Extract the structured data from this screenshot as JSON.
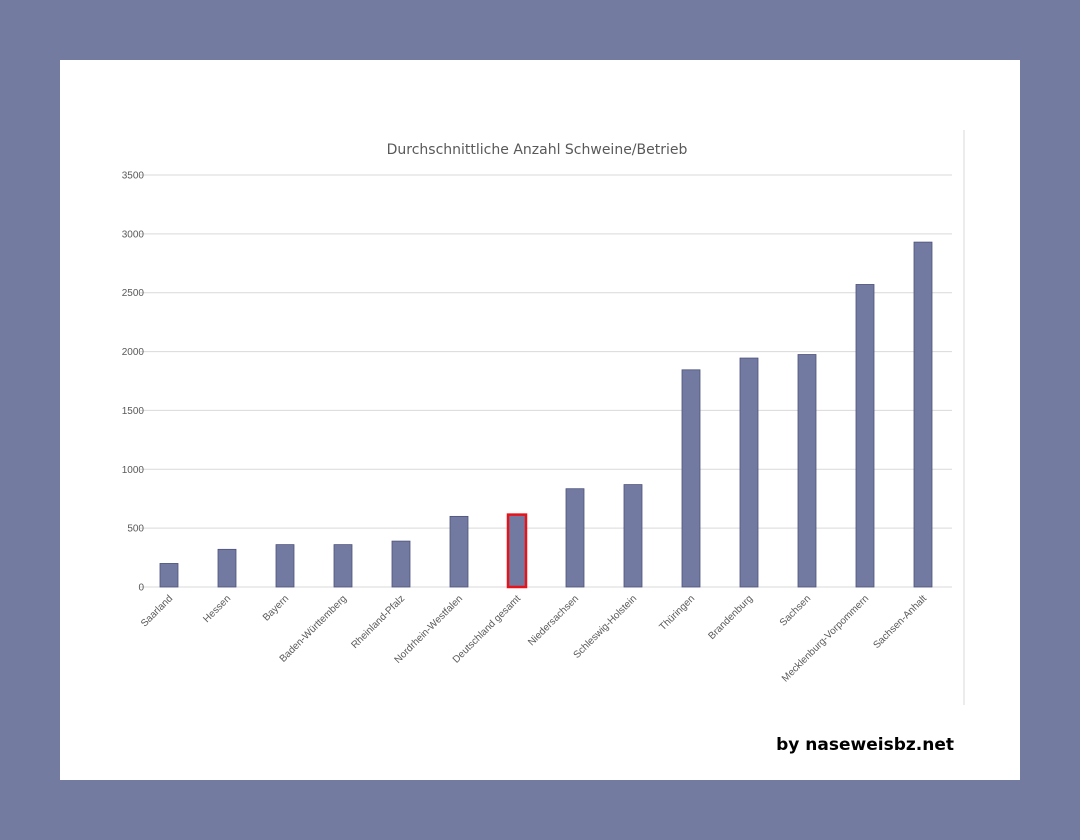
{
  "chart_data": {
    "type": "bar",
    "title": "Durchschnittliche  Anzahl Schweine/Betrieb",
    "xlabel": "",
    "ylabel": "",
    "ylim": [
      0,
      3500
    ],
    "yticks": [
      "0",
      "500",
      "1000",
      "1500",
      "2000",
      "2500",
      "3000",
      "3500"
    ],
    "grid": true,
    "categories": [
      "Saarland",
      "Hessen",
      "Bayern",
      "Baden-Württemberg",
      "Rheinland-Pfalz",
      "Nordrhein-Westfalen",
      "Deutschland gesamt",
      "Niedersachsen",
      "Schleswig-Holstein",
      "Thüringen",
      "Brandenburg",
      "Sachsen",
      "Mecklenburg-Vorpommern",
      "Sachsen-Anhalt"
    ],
    "values": [
      200,
      320,
      360,
      360,
      390,
      600,
      615,
      835,
      870,
      1845,
      1945,
      1975,
      2570,
      2930
    ],
    "highlight_category": "Deutschland gesamt",
    "colors": {
      "bar": "#737aa2",
      "bar_edge": "#4c527a",
      "highlight_edge": "#e8131a",
      "grid": "#d9d9d9"
    }
  },
  "credit": "by naseweisbz.net"
}
